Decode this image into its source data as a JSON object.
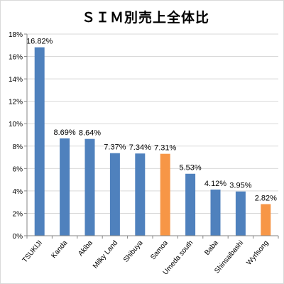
{
  "colors": {
    "blue": "#4f81bd",
    "orange": "#f79646",
    "grid": "#d9d9d9",
    "axis": "#868686",
    "text": "#000000",
    "frame": "#d9d9d9"
  },
  "chart_data": {
    "type": "bar",
    "title": "ＳＩＭ別売上全体比",
    "xlabel": "",
    "ylabel": "",
    "ylim": [
      0,
      18
    ],
    "ytick_step": 2,
    "ytick_labels": [
      "0%",
      "2%",
      "4%",
      "6%",
      "8%",
      "10%",
      "12%",
      "14%",
      "16%",
      "18%"
    ],
    "grid": true,
    "legend": "none",
    "categories": [
      "TSUKIJI",
      "Kanda",
      "Akiba",
      "Milky Land",
      "Shibuya",
      "Samoa",
      "Umeda south",
      "Baba",
      "Shinsaibashi",
      "Wyrlsong"
    ],
    "values": [
      16.82,
      8.69,
      8.64,
      7.37,
      7.34,
      7.31,
      5.53,
      4.12,
      3.95,
      2.82
    ],
    "data_labels": [
      "16.82%",
      "8.69%",
      "8.64%",
      "7.37%",
      "7.34%",
      "7.31%",
      "5.53%",
      "4.12%",
      "3.95%",
      "2.82%"
    ],
    "bar_colors": [
      "blue",
      "blue",
      "blue",
      "blue",
      "blue",
      "orange",
      "blue",
      "blue",
      "blue",
      "orange"
    ]
  }
}
